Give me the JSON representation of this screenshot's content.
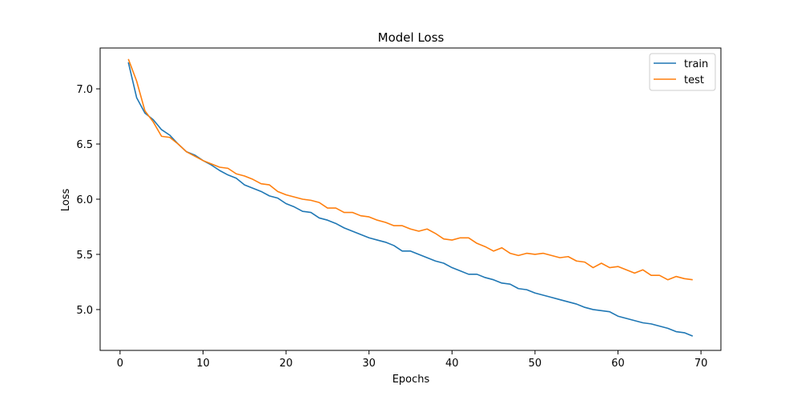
{
  "chart_data": {
    "type": "line",
    "title": "Model Loss",
    "xlabel": "Epochs",
    "ylabel": "Loss",
    "xlim": [
      -2.4,
      72.4
    ],
    "ylim": [
      4.63,
      7.37
    ],
    "xticks": [
      0,
      10,
      20,
      30,
      40,
      50,
      60,
      70
    ],
    "yticks": [
      5.0,
      5.5,
      6.0,
      6.5,
      7.0
    ],
    "ytick_labels": [
      "5.0",
      "5.5",
      "6.0",
      "6.5",
      "7.0"
    ],
    "legend": "top-right",
    "grid": false,
    "x": [
      1,
      2,
      3,
      4,
      5,
      6,
      7,
      8,
      9,
      10,
      11,
      12,
      13,
      14,
      15,
      16,
      17,
      18,
      19,
      20,
      21,
      22,
      23,
      24,
      25,
      26,
      27,
      28,
      29,
      30,
      31,
      32,
      33,
      34,
      35,
      36,
      37,
      38,
      39,
      40,
      41,
      42,
      43,
      44,
      45,
      46,
      47,
      48,
      49,
      50,
      51,
      52,
      53,
      54,
      55,
      56,
      57,
      58,
      59,
      60,
      61,
      62,
      63,
      64,
      65,
      66,
      67,
      68,
      69
    ],
    "series": [
      {
        "name": "train",
        "color": "#1f77b4",
        "values": [
          7.24,
          6.92,
          6.78,
          6.72,
          6.63,
          6.58,
          6.5,
          6.43,
          6.4,
          6.35,
          6.31,
          6.26,
          6.22,
          6.19,
          6.13,
          6.1,
          6.07,
          6.03,
          6.01,
          5.96,
          5.93,
          5.89,
          5.88,
          5.83,
          5.81,
          5.78,
          5.74,
          5.71,
          5.68,
          5.65,
          5.63,
          5.61,
          5.58,
          5.53,
          5.53,
          5.5,
          5.47,
          5.44,
          5.42,
          5.38,
          5.35,
          5.32,
          5.32,
          5.29,
          5.27,
          5.24,
          5.23,
          5.19,
          5.18,
          5.15,
          5.13,
          5.11,
          5.09,
          5.07,
          5.05,
          5.02,
          5.0,
          4.99,
          4.98,
          4.94,
          4.92,
          4.9,
          4.88,
          4.87,
          4.85,
          4.83,
          4.8,
          4.79,
          4.76
        ]
      },
      {
        "name": "test",
        "color": "#ff7f0e",
        "values": [
          7.27,
          7.07,
          6.8,
          6.7,
          6.57,
          6.56,
          6.5,
          6.43,
          6.39,
          6.35,
          6.32,
          6.29,
          6.28,
          6.23,
          6.21,
          6.18,
          6.14,
          6.13,
          6.07,
          6.04,
          6.02,
          6.0,
          5.99,
          5.97,
          5.92,
          5.92,
          5.88,
          5.88,
          5.85,
          5.84,
          5.81,
          5.79,
          5.76,
          5.76,
          5.73,
          5.71,
          5.73,
          5.69,
          5.64,
          5.63,
          5.65,
          5.65,
          5.6,
          5.57,
          5.53,
          5.56,
          5.51,
          5.49,
          5.51,
          5.5,
          5.51,
          5.49,
          5.47,
          5.48,
          5.44,
          5.43,
          5.38,
          5.42,
          5.38,
          5.39,
          5.36,
          5.33,
          5.36,
          5.31,
          5.31,
          5.27,
          5.3,
          5.28,
          5.27
        ]
      }
    ]
  }
}
